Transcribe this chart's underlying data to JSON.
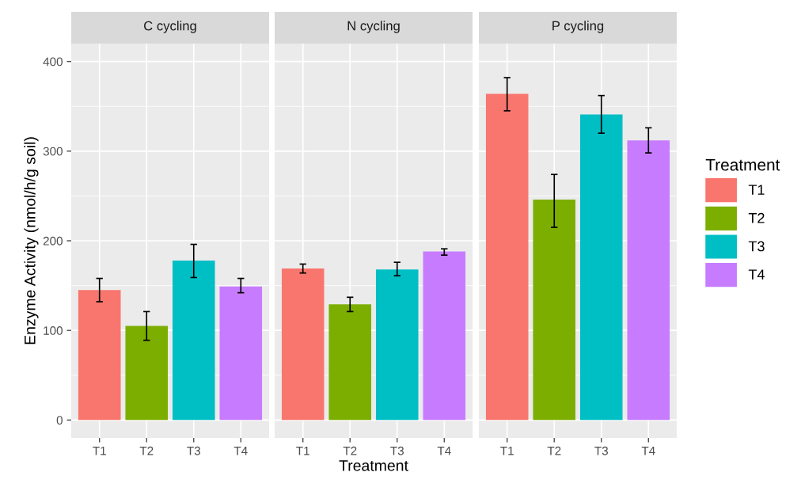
{
  "chart_data": [
    {
      "type": "bar",
      "title": "C cycling",
      "ylabel": "Enzyme Activity (nmol/h/g soil)",
      "categories": [
        "T1",
        "T2",
        "T3",
        "T4"
      ],
      "series": [
        {
          "name": "T1",
          "color": "#f8766d",
          "values": [
            145,
            null,
            null,
            null
          ],
          "errors": [
            [
              132,
              158
            ],
            null,
            null,
            null
          ]
        },
        {
          "name": "T2",
          "color": "#7cae00",
          "values": [
            null,
            105,
            null,
            null
          ],
          "errors": [
            null,
            [
              89,
              121
            ],
            null,
            null
          ]
        },
        {
          "name": "T3",
          "color": "#00bfc4",
          "values": [
            null,
            null,
            178,
            null
          ],
          "errors": [
            null,
            null,
            [
              159,
              196
            ],
            null
          ]
        },
        {
          "name": "T4",
          "color": "#c77cff",
          "values": [
            null,
            null,
            null,
            149
          ],
          "errors": [
            null,
            null,
            null,
            [
              142,
              158
            ]
          ]
        }
      ],
      "ylim": [
        -20,
        420
      ],
      "yticks": [
        0,
        100,
        200,
        300,
        400
      ],
      "grid": true,
      "legend": "right",
      "legend_title": "Treatment"
    },
    {
      "type": "bar",
      "title": "N cycling",
      "xlabel": "Treatment",
      "categories": [
        "T1",
        "T2",
        "T3",
        "T4"
      ],
      "series": [
        {
          "color": "#f8766d",
          "values": [
            169,
            null,
            null,
            null
          ],
          "errors": [
            [
              164,
              174
            ],
            null,
            null,
            null
          ]
        },
        {
          "color": "#7cae00",
          "values": [
            null,
            129,
            null,
            null
          ],
          "errors": [
            null,
            [
              121,
              137
            ],
            null,
            null
          ]
        },
        {
          "color": "#00bfc4",
          "values": [
            null,
            null,
            168,
            null
          ],
          "errors": [
            null,
            null,
            [
              161,
              176
            ],
            null
          ]
        },
        {
          "color": "#c77cff",
          "values": [
            null,
            null,
            null,
            188
          ],
          "errors": [
            null,
            null,
            null,
            [
              184,
              191
            ]
          ]
        }
      ],
      "ylim": [
        -20,
        420
      ],
      "yticks": [
        0,
        100,
        200,
        300,
        400
      ],
      "grid": true,
      "tick_labels": "x"
    },
    {
      "type": "bar",
      "title": "P cycling",
      "categories": [
        "T1",
        "T2",
        "T3",
        "T4"
      ],
      "series": [
        {
          "color": "#f8766d",
          "values": [
            364,
            null,
            null,
            null
          ],
          "errors": [
            [
              345,
              382
            ],
            null,
            null,
            null
          ]
        },
        {
          "color": "#7cae00",
          "values": [
            null,
            246,
            null,
            null
          ],
          "errors": [
            null,
            [
              215,
              274
            ],
            null,
            null
          ]
        },
        {
          "color": "#00bfc4",
          "values": [
            null,
            null,
            341,
            null
          ],
          "errors": [
            null,
            null,
            [
              320,
              362
            ],
            null
          ]
        },
        {
          "color": "#c77cff",
          "values": [
            null,
            null,
            null,
            312
          ],
          "errors": [
            null,
            null,
            null,
            [
              298,
              326
            ]
          ]
        }
      ],
      "ylim": [
        -20,
        420
      ],
      "yticks": [
        0,
        100,
        200,
        300,
        400
      ],
      "grid": true,
      "tick_labels": "x"
    }
  ]
}
